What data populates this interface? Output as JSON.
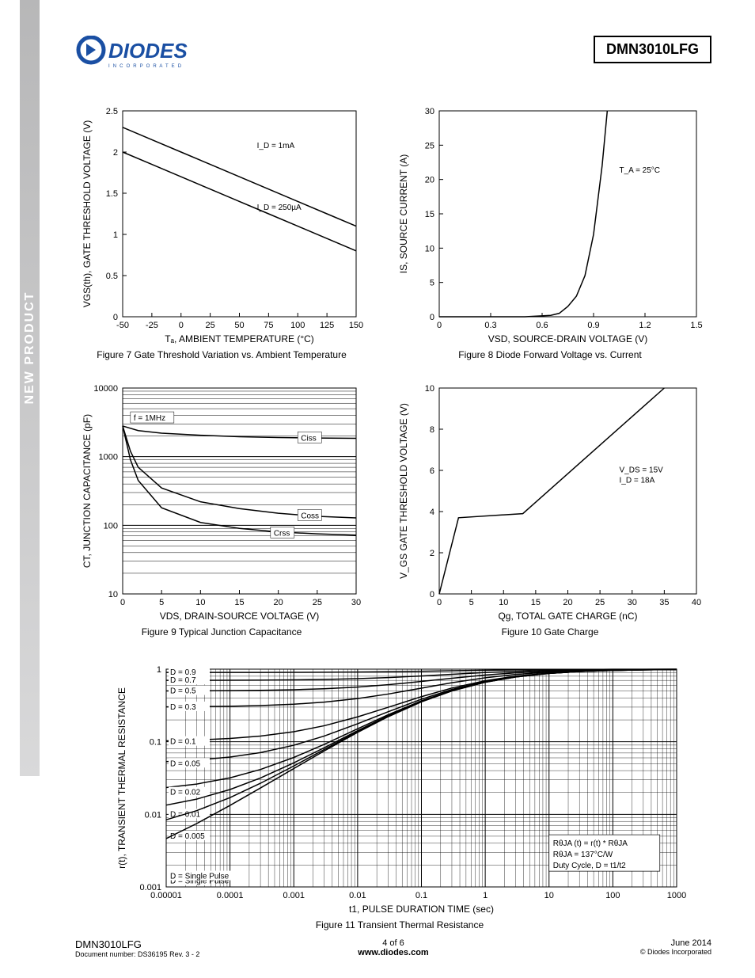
{
  "sidebar_text": "NEW PRODUCT",
  "part_number": "DMN3010LFG",
  "logo_text_1": "DIODES",
  "logo_text_2": "I N C O R P O R A T E D",
  "fig7": {
    "caption": "Figure 7  Gate Threshold Variation vs. Ambient Temperature",
    "xlabel": "T_A, AMBIENT TEMPERATURE (°C)",
    "ylabel": "V_GS(th), GATE THRESHOLD VOLTAGE (V)",
    "xticks": [
      -50,
      -25,
      0,
      25,
      50,
      75,
      100,
      125,
      150
    ],
    "yticks": [
      0,
      0.5,
      1,
      1.5,
      2,
      2.5
    ],
    "xlim": [
      -50,
      150
    ],
    "ylim": [
      0,
      2.5
    ],
    "curve1_label": "I_D = 1mA",
    "curve2_label": "I_D = 250µA",
    "curve1_pts": [
      [
        -50,
        2.3
      ],
      [
        -25,
        2.15
      ],
      [
        0,
        2.0
      ],
      [
        25,
        1.85
      ],
      [
        50,
        1.7
      ],
      [
        75,
        1.55
      ],
      [
        100,
        1.4
      ],
      [
        125,
        1.25
      ],
      [
        150,
        1.1
      ]
    ],
    "curve2_pts": [
      [
        -50,
        2.0
      ],
      [
        -25,
        1.85
      ],
      [
        0,
        1.7
      ],
      [
        25,
        1.55
      ],
      [
        50,
        1.4
      ],
      [
        75,
        1.25
      ],
      [
        100,
        1.1
      ],
      [
        125,
        0.95
      ],
      [
        150,
        0.8
      ]
    ]
  },
  "fig8": {
    "caption": "Figure 8  Diode Forward Voltage vs. Current",
    "xlabel": "V_SD, SOURCE-DRAIN VOLTAGE (V)",
    "ylabel": "I_S, SOURCE CURRENT (A)",
    "xticks": [
      0,
      0.3,
      0.6,
      0.9,
      1.2,
      1.5
    ],
    "yticks": [
      0,
      5,
      10,
      15,
      20,
      25,
      30
    ],
    "xlim": [
      0,
      1.5
    ],
    "ylim": [
      0,
      30
    ],
    "annot": "T_A = 25°C",
    "curve_pts": [
      [
        0,
        0
      ],
      [
        0.5,
        0
      ],
      [
        0.65,
        0.2
      ],
      [
        0.7,
        0.5
      ],
      [
        0.75,
        1.5
      ],
      [
        0.8,
        3
      ],
      [
        0.85,
        6
      ],
      [
        0.9,
        12
      ],
      [
        0.95,
        22
      ],
      [
        0.98,
        30
      ]
    ]
  },
  "fig9": {
    "caption": "Figure 9  Typical Junction Capacitance",
    "xlabel": "V_DS, DRAIN-SOURCE VOLTAGE (V)",
    "ylabel": "C_T, JUNCTION CAPACITANCE (pF)",
    "xticks": [
      0,
      5,
      10,
      15,
      20,
      25,
      30
    ],
    "yticks": [
      10,
      100,
      1000,
      10000
    ],
    "xlim": [
      0,
      30
    ],
    "ylim": [
      10,
      10000
    ],
    "yscale": "log",
    "annot1": "f = 1MHz",
    "label_ciss": "C_iss",
    "label_coss": "C_oss",
    "label_crss": "C_rss",
    "ciss_pts": [
      [
        0,
        2800
      ],
      [
        2,
        2400
      ],
      [
        5,
        2200
      ],
      [
        10,
        2050
      ],
      [
        15,
        1950
      ],
      [
        20,
        1900
      ],
      [
        25,
        1870
      ],
      [
        30,
        1850
      ]
    ],
    "coss_pts": [
      [
        0,
        2800
      ],
      [
        1,
        1200
      ],
      [
        2,
        700
      ],
      [
        5,
        350
      ],
      [
        10,
        220
      ],
      [
        15,
        175
      ],
      [
        20,
        150
      ],
      [
        25,
        135
      ],
      [
        30,
        128
      ]
    ],
    "crss_pts": [
      [
        0,
        2800
      ],
      [
        1,
        900
      ],
      [
        2,
        450
      ],
      [
        5,
        180
      ],
      [
        10,
        110
      ],
      [
        15,
        90
      ],
      [
        20,
        80
      ],
      [
        25,
        75
      ],
      [
        30,
        72
      ]
    ]
  },
  "fig10": {
    "caption": "Figure 10  Gate Charge",
    "xlabel": "Q_g, TOTAL GATE CHARGE (nC)",
    "ylabel": "V_GS GATE THRESHOLD VOLTAGE (V)",
    "xticks": [
      0,
      5,
      10,
      15,
      20,
      25,
      30,
      35,
      40
    ],
    "yticks": [
      0,
      2,
      4,
      6,
      8,
      10
    ],
    "xlim": [
      0,
      40
    ],
    "ylim": [
      0,
      10
    ],
    "annot1": "V_DS = 15V",
    "annot2": "I_D = 18A",
    "curve_pts": [
      [
        0,
        0
      ],
      [
        3,
        3.7
      ],
      [
        13,
        3.9
      ],
      [
        35,
        10
      ]
    ]
  },
  "fig11": {
    "caption": "Figure 11  Transient Thermal Resistance",
    "xlabel": "t1, PULSE DURATION TIME (sec)",
    "ylabel": "r(t), TRANSIENT THERMAL RESISTANCE",
    "xticks": [
      1e-05,
      0.0001,
      0.001,
      0.01,
      0.1,
      1,
      10,
      100,
      1000
    ],
    "yticks": [
      0.001,
      0.01,
      0.1,
      1
    ],
    "xscale": "log",
    "yscale": "log",
    "d_labels": [
      "D = 0.9",
      "D = 0.7",
      "D = 0.5",
      "D = 0.3",
      "D = 0.1",
      "D = 0.05",
      "D = 0.02",
      "D = 0.01",
      "D = 0.005",
      "D = Single Pulse"
    ],
    "d_start_y": [
      0.9,
      0.7,
      0.5,
      0.3,
      0.1,
      0.05,
      0.02,
      0.01,
      0.005,
      0.0012
    ],
    "box_lines": [
      "R_θJA (t) = r(t) * R_θJA",
      "R_θJA = 137°C/W",
      "Duty Cycle, D = t1/t2"
    ]
  },
  "footer": {
    "left_main": "DMN3010LFG",
    "left_sub": "Document number: DS36195  Rev. 3 - 2",
    "center_main": "4 of 6",
    "center_sub": "www.diodes.com",
    "right_main": "June 2014",
    "right_sub": "© Diodes Incorporated"
  }
}
